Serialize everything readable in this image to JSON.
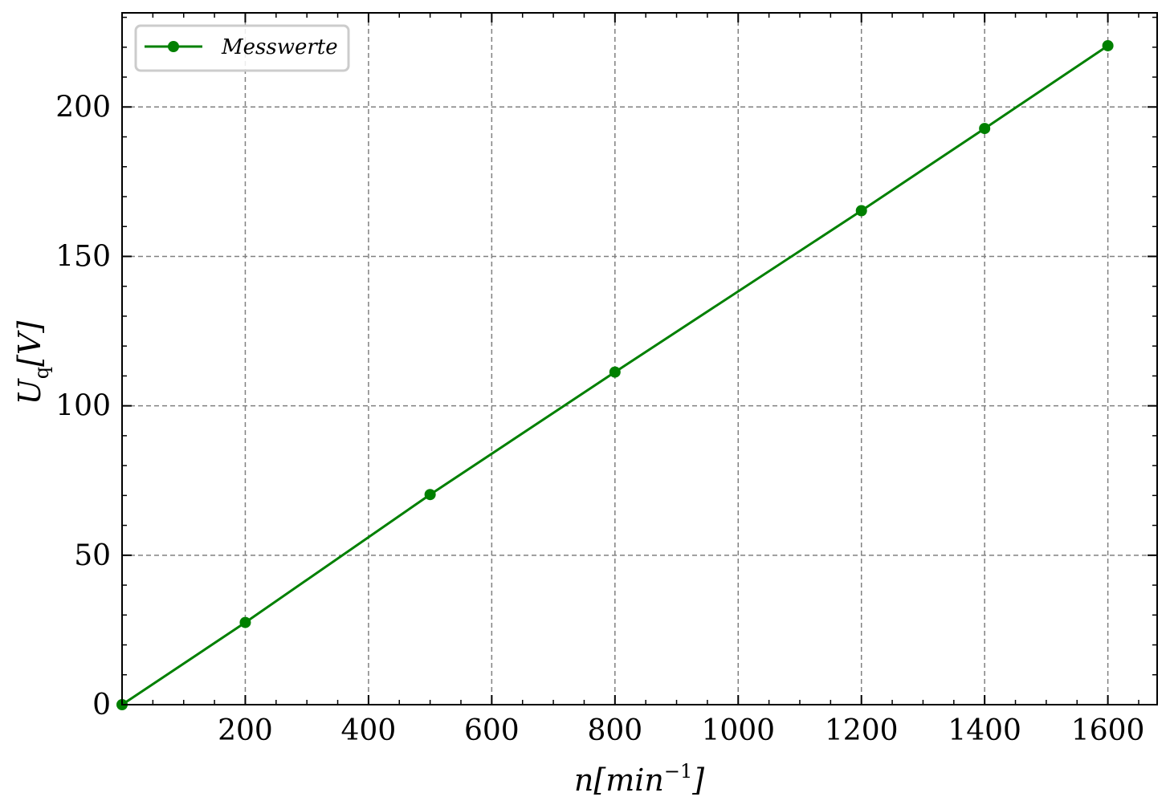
{
  "chart_data": {
    "type": "line",
    "title": "",
    "xlabel": "n[min^-1]",
    "ylabel": "U_q[V]",
    "x_label_parts": {
      "base": "n[min",
      "sup": "−1",
      "close": "]"
    },
    "y_label_parts": {
      "base": "U",
      "sub": "q",
      "rest": "[V]"
    },
    "xlim": [
      0,
      1680
    ],
    "ylim": [
      0,
      231.5
    ],
    "x_ticks": [
      200,
      400,
      600,
      800,
      1000,
      1200,
      1400,
      1600
    ],
    "y_ticks": [
      0,
      50,
      100,
      150,
      200
    ],
    "grid": true,
    "legend": {
      "position": "top-left"
    },
    "series": [
      {
        "name": "Messwerte",
        "color": "#008000",
        "marker": "circle",
        "x": [
          0,
          200,
          500,
          800,
          1200,
          1400,
          1600
        ],
        "y": [
          0,
          27.5,
          70.3,
          111.3,
          165.3,
          192.8,
          220.5
        ]
      }
    ]
  }
}
